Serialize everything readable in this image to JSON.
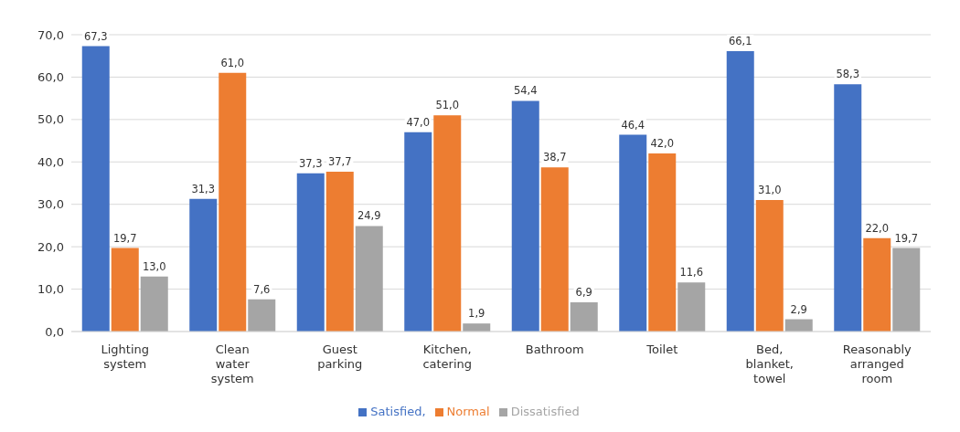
{
  "chart_data": {
    "type": "bar",
    "categories": [
      "Lighting system",
      "Clean water system",
      "Guest parking",
      "Kitchen, catering",
      "Bathroom",
      "Toilet",
      "Bed, blanket, towel",
      "Reasonably arranged room"
    ],
    "series": [
      {
        "name": "Satisfied,",
        "color": "#4472c4",
        "values": [
          67.3,
          31.3,
          37.3,
          47.0,
          54.4,
          46.4,
          66.1,
          58.3
        ],
        "value_labels": [
          "67,3",
          "31,3",
          "37,3",
          "47,0",
          "54,4",
          "46,4",
          "66,1",
          "58,3"
        ]
      },
      {
        "name": "Normal",
        "color": "#ed7d31",
        "values": [
          19.7,
          61.0,
          37.7,
          51.0,
          38.7,
          42.0,
          31.0,
          22.0
        ],
        "value_labels": [
          "19,7",
          "61,0",
          "37,7",
          "51,0",
          "38,7",
          "42,0",
          "31,0",
          "22,0"
        ]
      },
      {
        "name": "Dissatisfied",
        "color": "#a5a5a5",
        "values": [
          13.0,
          7.6,
          24.9,
          1.9,
          6.9,
          11.6,
          2.9,
          19.7
        ],
        "value_labels": [
          "13,0",
          "7,6",
          "24,9",
          "1,9",
          "6,9",
          "11,6",
          "2,9",
          "19,7"
        ]
      }
    ],
    "ylim": [
      0,
      70
    ],
    "yticks": [
      {
        "value": 0,
        "label": "0,0"
      },
      {
        "value": 10,
        "label": "10,0"
      },
      {
        "value": 20,
        "label": "20,0"
      },
      {
        "value": 30,
        "label": "30,0"
      },
      {
        "value": 40,
        "label": "40,0"
      },
      {
        "value": 50,
        "label": "50,0"
      },
      {
        "value": 60,
        "label": "60,0"
      },
      {
        "value": 70,
        "label": "70,0"
      }
    ],
    "grid": "y",
    "legend": "bottom"
  }
}
